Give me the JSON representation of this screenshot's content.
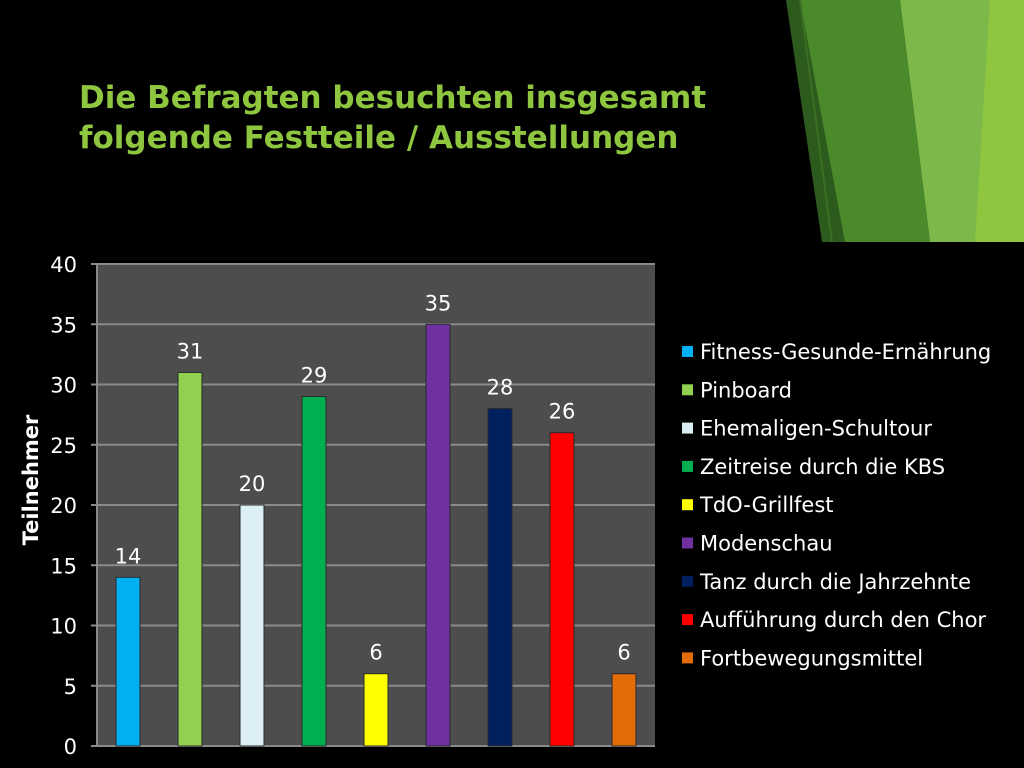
{
  "slide": {
    "title_line1": "Die Befragten besuchten insgesamt",
    "title_line2": "folgende Festteile / Ausstellungen",
    "accent_color": "#8ec63f"
  },
  "chart_data": {
    "type": "bar",
    "title": "",
    "ylabel": "Teilnehmer",
    "ylim": [
      0,
      40
    ],
    "yticks": [
      0,
      5,
      10,
      15,
      20,
      25,
      30,
      35,
      40
    ],
    "grid": true,
    "legend_position": "right",
    "plot_background": "#4d4d4d",
    "categories": [
      "Fitness-Gesunde-Ernährung",
      "Pinboard",
      "Ehemaligen-Schultour",
      "Zeitreise durch die KBS",
      "TdO-Grillfest",
      "Modenschau",
      "Tanz durch die Jahrzehnte",
      "Aufführung durch den Chor",
      "Fortbewegungsmittel"
    ],
    "values": [
      14,
      31,
      20,
      29,
      6,
      35,
      28,
      26,
      6
    ],
    "colors": [
      "#00b0f0",
      "#92d050",
      "#dbeef4",
      "#00b050",
      "#ffff00",
      "#7030a0",
      "#002060",
      "#ff0000",
      "#e36c09"
    ]
  }
}
